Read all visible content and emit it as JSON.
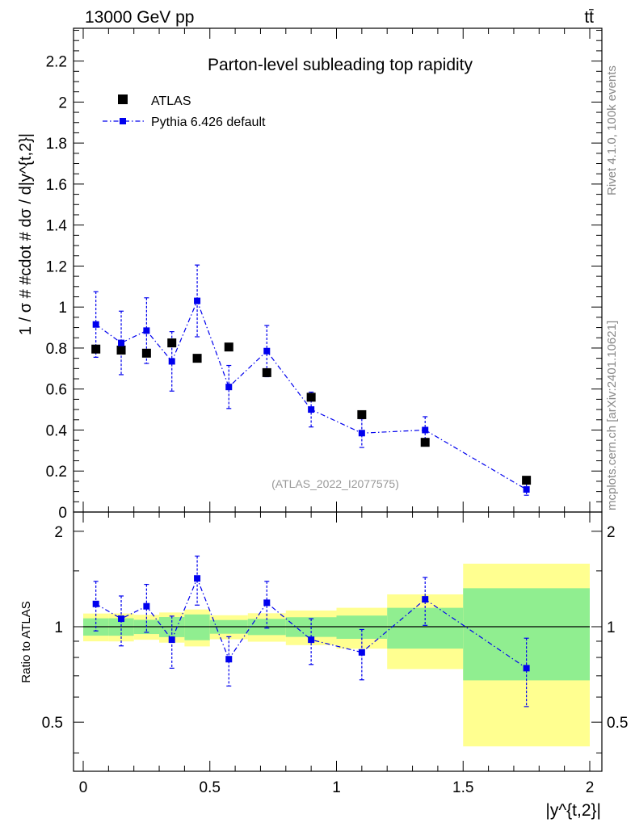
{
  "header": {
    "energy_label": "13000 GeV pp",
    "process_label": "tt̄"
  },
  "side_labels": {
    "rivet": "Rivet 4.1.0,  100k events",
    "mcplots": "mcplots.cern.ch [arXiv:2401.10621]"
  },
  "colors": {
    "data": "#000000",
    "mc": "#0000ee",
    "band_inner": "#90ee90",
    "band_outer": "#ffff90"
  },
  "chart_data": {
    "type": "scatter",
    "title": "Parton-level subleading top rapidity",
    "xlabel": "|y^{t,2}|",
    "ylabel": "1 / σ # #cdot # dσ / d|y^{t,2}|",
    "ratio_ylabel": "Ratio to ATLAS",
    "watermark": "(ATLAS_2022_I2077575)",
    "xlim": [
      0,
      2
    ],
    "ylim": [
      0,
      2.36
    ],
    "ratio_ylim": [
      0.35,
      2.3
    ],
    "x_ticks": [
      0,
      0.5,
      1,
      1.5,
      2
    ],
    "x_tick_labels": [
      "0",
      "0.5",
      "1",
      "1.5",
      "2"
    ],
    "y_ticks": [
      0,
      0.2,
      0.4,
      0.6,
      0.8,
      1,
      1.2,
      1.4,
      1.6,
      1.8,
      2,
      2.2
    ],
    "y_tick_labels": [
      "0",
      "0.2",
      "0.4",
      "0.6",
      "0.8",
      "1",
      "1.2",
      "1.4",
      "1.6",
      "1.8",
      "2",
      "2.2"
    ],
    "ratio_ticks": [
      0.5,
      1,
      2
    ],
    "ratio_tick_labels": [
      "0.5",
      "1",
      "2"
    ],
    "bins": [
      [
        0,
        0.1
      ],
      [
        0.1,
        0.2
      ],
      [
        0.2,
        0.3
      ],
      [
        0.3,
        0.4
      ],
      [
        0.4,
        0.5
      ],
      [
        0.5,
        0.65
      ],
      [
        0.65,
        0.8
      ],
      [
        0.8,
        1.0
      ],
      [
        1.0,
        1.2
      ],
      [
        1.2,
        1.5
      ],
      [
        1.5,
        2.0
      ]
    ],
    "x": [
      0.05,
      0.15,
      0.25,
      0.35,
      0.45,
      0.575,
      0.725,
      0.9,
      1.1,
      1.35,
      1.75
    ],
    "legend": [
      "ATLAS",
      "Pythia 6.426 default"
    ],
    "series": [
      {
        "name": "ATLAS",
        "values": [
          0.795,
          0.79,
          0.775,
          0.825,
          0.75,
          0.805,
          0.68,
          0.56,
          0.475,
          0.34,
          0.155
        ],
        "band_inner": [
          0.05,
          0.05,
          0.04,
          0.06,
          0.07,
          0.04,
          0.04,
          0.04,
          0.04,
          0.05,
          0.05
        ],
        "band_outer": [
          0.08,
          0.08,
          0.07,
          0.09,
          0.1,
          0.07,
          0.07,
          0.07,
          0.07,
          0.09,
          0.09
        ]
      },
      {
        "name": "Pythia 6.426 default",
        "values": [
          0.915,
          0.825,
          0.885,
          0.735,
          1.03,
          0.61,
          0.785,
          0.5,
          0.385,
          0.4,
          0.11
        ],
        "err": [
          0.16,
          0.155,
          0.16,
          0.145,
          0.175,
          0.105,
          0.125,
          0.085,
          0.07,
          0.065,
          0.028
        ]
      }
    ],
    "ratio": {
      "values": [
        1.18,
        1.06,
        1.16,
        0.91,
        1.42,
        0.79,
        1.19,
        0.91,
        0.83,
        1.22,
        0.74
      ],
      "err": [
        0.21,
        0.19,
        0.2,
        0.17,
        0.25,
        0.14,
        0.2,
        0.15,
        0.15,
        0.21,
        0.18
      ]
    }
  }
}
